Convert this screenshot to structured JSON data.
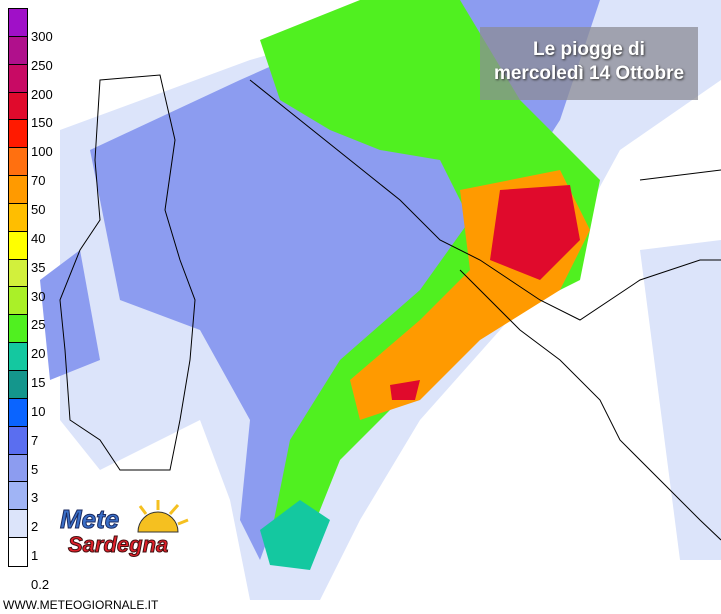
{
  "title": {
    "line1": "Le piogge di",
    "line2": "mercoledì 14 Ottobre"
  },
  "legend": {
    "labels": [
      "300",
      "250",
      "200",
      "150",
      "100",
      "70",
      "50",
      "40",
      "35",
      "30",
      "25",
      "20",
      "15",
      "10",
      "7",
      "5",
      "3",
      "2",
      "1",
      "0.2"
    ],
    "colors": [
      "#a010c8",
      "#b0108c",
      "#c80a64",
      "#e00a2c",
      "#ff1a00",
      "#ff7010",
      "#ff9a00",
      "#ffbe00",
      "#ffff00",
      "#d2f03c",
      "#aaf028",
      "#50f020",
      "#14c8a0",
      "#14968c",
      "#0a64ff",
      "#5a6ef0",
      "#8c9cf0",
      "#a0b4f5",
      "#dce4fa",
      "#ffffff"
    ]
  },
  "logo": {
    "line1": "Mete",
    "line2": "Sardegna"
  },
  "website": "WWW.METEOGIORNALE.IT"
}
